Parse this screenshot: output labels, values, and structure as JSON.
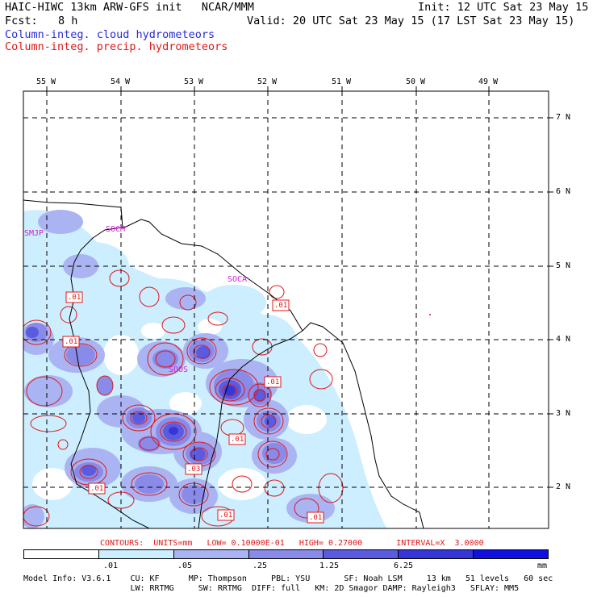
{
  "header": {
    "title": "HAIC-HIWC 13km ARW-GFS init   NCAR/MMM",
    "init": "Init: 12 UTC Sat 23 May 15",
    "fcst_label": "Fcst:",
    "fcst_value": "8 h",
    "valid": "Valid: 20 UTC Sat 23 May 15 (17 LST Sat 23 May 15)",
    "field1": "Column-integ. cloud hydrometeors",
    "field2": "Column-integ. precip. hydrometeors"
  },
  "map": {
    "lon_labels": [
      "55 W",
      "54 W",
      "53 W",
      "52 W",
      "51 W",
      "50 W",
      "49 W"
    ],
    "lat_labels": [
      "7 N",
      "6 N",
      "5 N",
      "4 N",
      "3 N",
      "2 N"
    ],
    "stations": [
      "SMJP",
      "SOCM",
      "SOCA",
      "SOOS"
    ],
    "contour_labels": [
      ".01",
      ".01",
      ".01",
      ".01",
      ".01",
      ".01",
      ".01",
      ".03",
      ".01"
    ],
    "colors": {
      "c1": "#cceeff",
      "c2": "#aab4f2",
      "c3": "#8a8ae8",
      "c4": "#5b5be0",
      "c5": "#3636d8",
      "c6": "#1010e0",
      "contour": "#e01818",
      "coast": "#000000"
    }
  },
  "contour_info": {
    "line": "CONTOURS:  UNITS=mm   LOW= 0.10000E-01   HIGH= 0.27000       INTERVAL=X  3.0000"
  },
  "colorbar": {
    "ticks": [
      ".01",
      ".05",
      ".25",
      "1.25",
      "6.25"
    ],
    "units": "mm",
    "colors": [
      "#ffffff",
      "#cceeff",
      "#aab4f2",
      "#8a8ae8",
      "#5b5be0",
      "#3636d8",
      "#1010e0"
    ]
  },
  "model_info": {
    "line1": "Model Info: V3.6.1    CU: KF      MP: Thompson     PBL: YSU       SF: Noah LSM     13 km   51 levels   60 sec",
    "line2": "                      LW: RRTMG     SW: RRTMG  DIFF: full   KM: 2D Smagor DAMP: Rayleigh3   SFLAY: MM5"
  }
}
